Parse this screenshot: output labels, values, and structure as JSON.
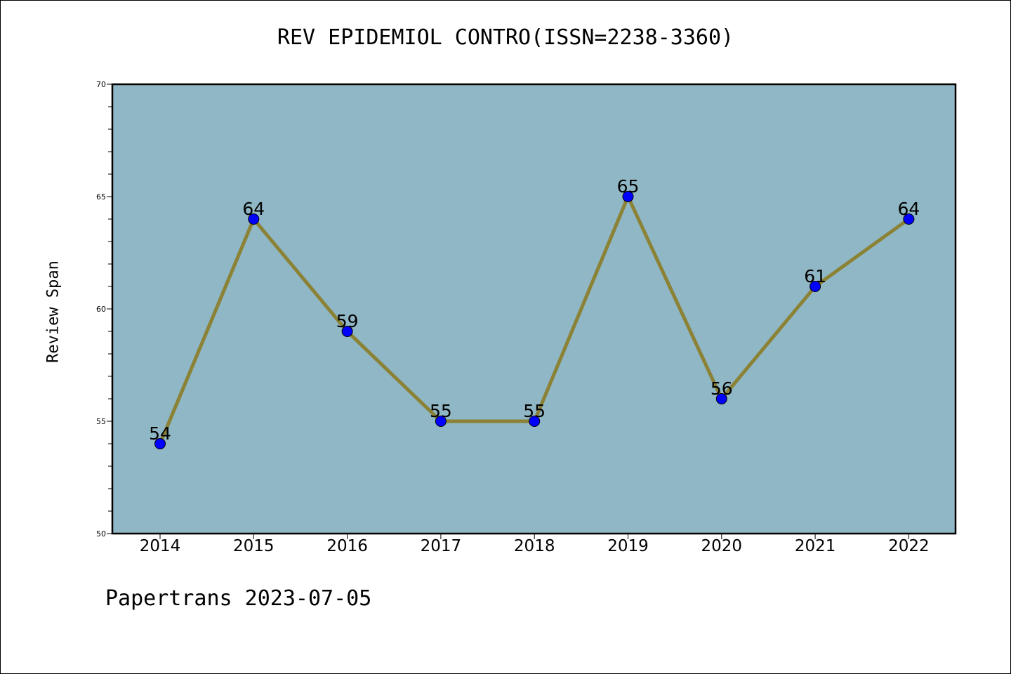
{
  "header": {
    "title": "REV EPIDEMIOL CONTRO(ISSN=2238-3360)"
  },
  "footer": {
    "text": "Papertrans 2023-07-05"
  },
  "chart_data": {
    "type": "line",
    "title": "REV EPIDEMIOL CONTRO(ISSN=2238-3360)",
    "xlabel": "",
    "ylabel": "Review Span",
    "categories": [
      "2014",
      "2015",
      "2016",
      "2017",
      "2018",
      "2019",
      "2020",
      "2021",
      "2022"
    ],
    "values": [
      54,
      64,
      59,
      55,
      55,
      65,
      56,
      61,
      64
    ],
    "data_labels": [
      "54",
      "64",
      "59",
      "55",
      "55",
      "65",
      "56",
      "61",
      "64"
    ],
    "ylim": [
      50,
      70
    ],
    "yticks": [
      "50",
      "55",
      "60",
      "65",
      "70"
    ],
    "grid": false,
    "colors": {
      "plot_background": "#8fb7c5",
      "line": "#8b8236",
      "marker": "#0000ff"
    }
  }
}
